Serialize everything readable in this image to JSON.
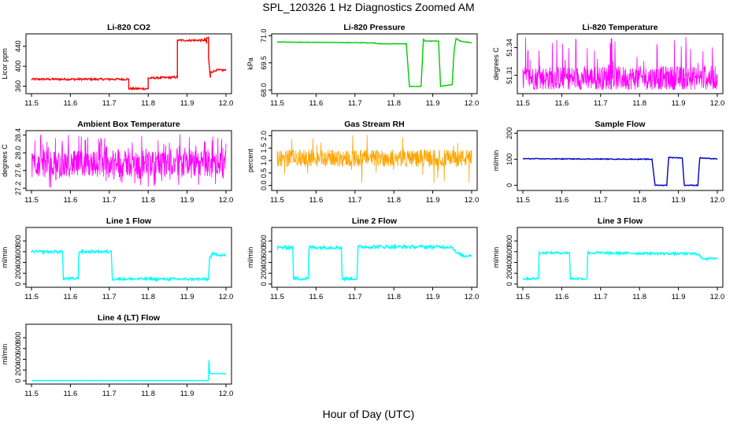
{
  "figure": {
    "title": "SPL_120326  1 Hz Diagnostics Zoomed AM",
    "xlabel": "Hour of Day (UTC)"
  },
  "chart_data": [
    {
      "type": "line",
      "title": "Li-820 CO2",
      "ylabel": "Licor ppm",
      "color": "#ff0000",
      "noise": 2,
      "xlim": [
        11.5,
        12.0
      ],
      "ylim": [
        345,
        465
      ],
      "yticks": [
        360,
        400,
        440
      ],
      "xticks": [
        "11.5",
        "11.6",
        "11.7",
        "11.8",
        "11.9",
        "12.0"
      ],
      "series": [
        {
          "x": [
            11.5,
            11.75,
            11.75,
            11.8,
            11.8,
            11.875,
            11.875,
            11.945,
            11.945,
            11.95,
            11.95,
            11.955,
            11.955,
            11.96,
            11.96,
            11.975,
            12.0
          ],
          "y": [
            374,
            374,
            355,
            355,
            376,
            378,
            452,
            452,
            455,
            448,
            455,
            458,
            418,
            377,
            388,
            392,
            392
          ]
        }
      ]
    },
    {
      "type": "line",
      "title": "Li-820 Pressure",
      "ylabel": "kPa",
      "color": "#00cc00",
      "noise": 0.015,
      "xlim": [
        11.5,
        12.0
      ],
      "ylim": [
        67.8,
        71.1
      ],
      "yticks": [
        68.0,
        69.5,
        71.0
      ],
      "xticks": [
        "11.5",
        "11.6",
        "11.7",
        "11.8",
        "11.9",
        "12.0"
      ],
      "series": [
        {
          "x": [
            11.5,
            11.75,
            11.76,
            11.832,
            11.84,
            11.87,
            11.876,
            11.88,
            11.915,
            11.92,
            11.95,
            11.955,
            11.96,
            11.97,
            12.0
          ],
          "y": [
            70.65,
            70.6,
            70.55,
            70.55,
            68.2,
            68.2,
            70.8,
            70.7,
            70.7,
            68.2,
            68.3,
            70.2,
            70.85,
            70.7,
            70.6
          ]
        }
      ]
    },
    {
      "type": "band",
      "title": "Li-820 Temperature",
      "ylabel": "degrees C",
      "color": "#ff00ff",
      "xlim": [
        11.5,
        12.0
      ],
      "ylim": [
        51.29,
        51.355
      ],
      "yticks": [
        51.31,
        51.34
      ],
      "xticks": [
        "11.5",
        "11.6",
        "11.7",
        "11.8",
        "11.9",
        "12.0"
      ],
      "band": {
        "low": 51.294,
        "high": 51.32,
        "spike_to": 51.352,
        "spike_density": 0.4
      }
    },
    {
      "type": "band",
      "title": "Ambient Box Temperature",
      "ylabel": "degrees C",
      "color": "#ff00ff",
      "xlim": [
        11.5,
        12.0
      ],
      "ylim": [
        27.15,
        28.5
      ],
      "yticks": [
        27.2,
        27.6,
        28.0,
        28.4
      ],
      "xticks": [
        "11.5",
        "11.6",
        "11.7",
        "11.8",
        "11.9",
        "12.0"
      ],
      "band": {
        "low": 27.45,
        "high": 28.05,
        "spike_to": 28.42,
        "spike_low": 27.2,
        "spike_density": 0.6
      }
    },
    {
      "type": "band",
      "title": "Gas Stream RH",
      "ylabel": "percent",
      "color": "#ffa500",
      "xlim": [
        11.5,
        12.0
      ],
      "ylim": [
        -0.2,
        2.2
      ],
      "yticks": [
        0.0,
        0.5,
        1.0,
        1.5,
        2.0
      ],
      "xticks": [
        "11.5",
        "11.6",
        "11.7",
        "11.8",
        "11.9",
        "12.0"
      ],
      "band": {
        "low": 0.75,
        "high": 1.45,
        "spike_to": 2.05,
        "spike_low": -0.1,
        "spike_density": 0.12
      }
    },
    {
      "type": "line",
      "title": "Sample Flow",
      "ylabel": "ml/min",
      "color": "#0000cc",
      "noise": 1.5,
      "xlim": [
        11.5,
        12.0
      ],
      "ylim": [
        -20,
        210
      ],
      "yticks": [
        0,
        100,
        200
      ],
      "xticks": [
        "11.5",
        "11.6",
        "11.7",
        "11.8",
        "11.9",
        "12.0"
      ],
      "series": [
        {
          "x": [
            11.5,
            11.832,
            11.84,
            11.87,
            11.875,
            11.91,
            11.915,
            11.95,
            11.955,
            11.965,
            12.0
          ],
          "y": [
            102,
            100,
            0,
            0,
            107,
            105,
            0,
            0,
            106,
            104,
            101
          ]
        }
      ]
    },
    {
      "type": "line",
      "title": "Line 1 Flow",
      "ylabel": "ml/min",
      "color": "#00ffff",
      "noise": 25,
      "xlim": [
        11.5,
        12.0
      ],
      "ylim": [
        -60,
        1050
      ],
      "yticks": [
        0,
        200,
        400,
        600,
        800
      ],
      "xticks": [
        "11.5",
        "11.6",
        "11.7",
        "11.8",
        "11.9",
        "12.0"
      ],
      "series": [
        {
          "x": [
            11.5,
            11.58,
            11.582,
            11.62,
            11.622,
            11.705,
            11.708,
            11.955,
            11.958,
            11.965,
            12.0
          ],
          "y": [
            600,
            600,
            100,
            100,
            600,
            600,
            95,
            90,
            480,
            560,
            530
          ]
        }
      ]
    },
    {
      "type": "line",
      "title": "Line 2 Flow",
      "ylabel": "ml/min",
      "color": "#00ffff",
      "noise": 30,
      "xlim": [
        11.5,
        12.0
      ],
      "ylim": [
        -60,
        1050
      ],
      "yticks": [
        0,
        200,
        400,
        600,
        800
      ],
      "xticks": [
        "11.5",
        "11.6",
        "11.7",
        "11.8",
        "11.9",
        "12.0"
      ],
      "series": [
        {
          "x": [
            11.5,
            11.54,
            11.542,
            11.58,
            11.582,
            11.665,
            11.667,
            11.705,
            11.708,
            11.95,
            11.96,
            11.98,
            12.0
          ],
          "y": [
            680,
            680,
            100,
            100,
            680,
            680,
            100,
            100,
            690,
            690,
            580,
            520,
            540
          ]
        }
      ]
    },
    {
      "type": "line",
      "title": "Line 3 Flow",
      "ylabel": "ml/min",
      "color": "#00ffff",
      "noise": 22,
      "xlim": [
        11.5,
        12.0
      ],
      "ylim": [
        -60,
        1050
      ],
      "yticks": [
        0,
        200,
        400,
        600,
        800
      ],
      "xticks": [
        "11.5",
        "11.6",
        "11.7",
        "11.8",
        "11.9",
        "12.0"
      ],
      "series": [
        {
          "x": [
            11.5,
            11.54,
            11.542,
            11.62,
            11.622,
            11.665,
            11.667,
            11.95,
            11.96,
            11.975,
            12.0
          ],
          "y": [
            100,
            100,
            580,
            580,
            100,
            100,
            580,
            560,
            480,
            470,
            480
          ]
        }
      ]
    },
    {
      "type": "line",
      "title": "Line 4 (LT) Flow",
      "ylabel": "ml/min",
      "color": "#00ffff",
      "noise": 1,
      "xlim": [
        11.5,
        12.0
      ],
      "ylim": [
        -60,
        1050
      ],
      "yticks": [
        0,
        200,
        400,
        600,
        800
      ],
      "xticks": [
        "11.5",
        "11.6",
        "11.7",
        "11.8",
        "11.9",
        "12.0"
      ],
      "series": [
        {
          "x": [
            11.5,
            11.955,
            11.956,
            11.958,
            11.962,
            11.97,
            12.0
          ],
          "y": [
            5,
            5,
            380,
            150,
            130,
            135,
            130
          ]
        }
      ]
    }
  ]
}
